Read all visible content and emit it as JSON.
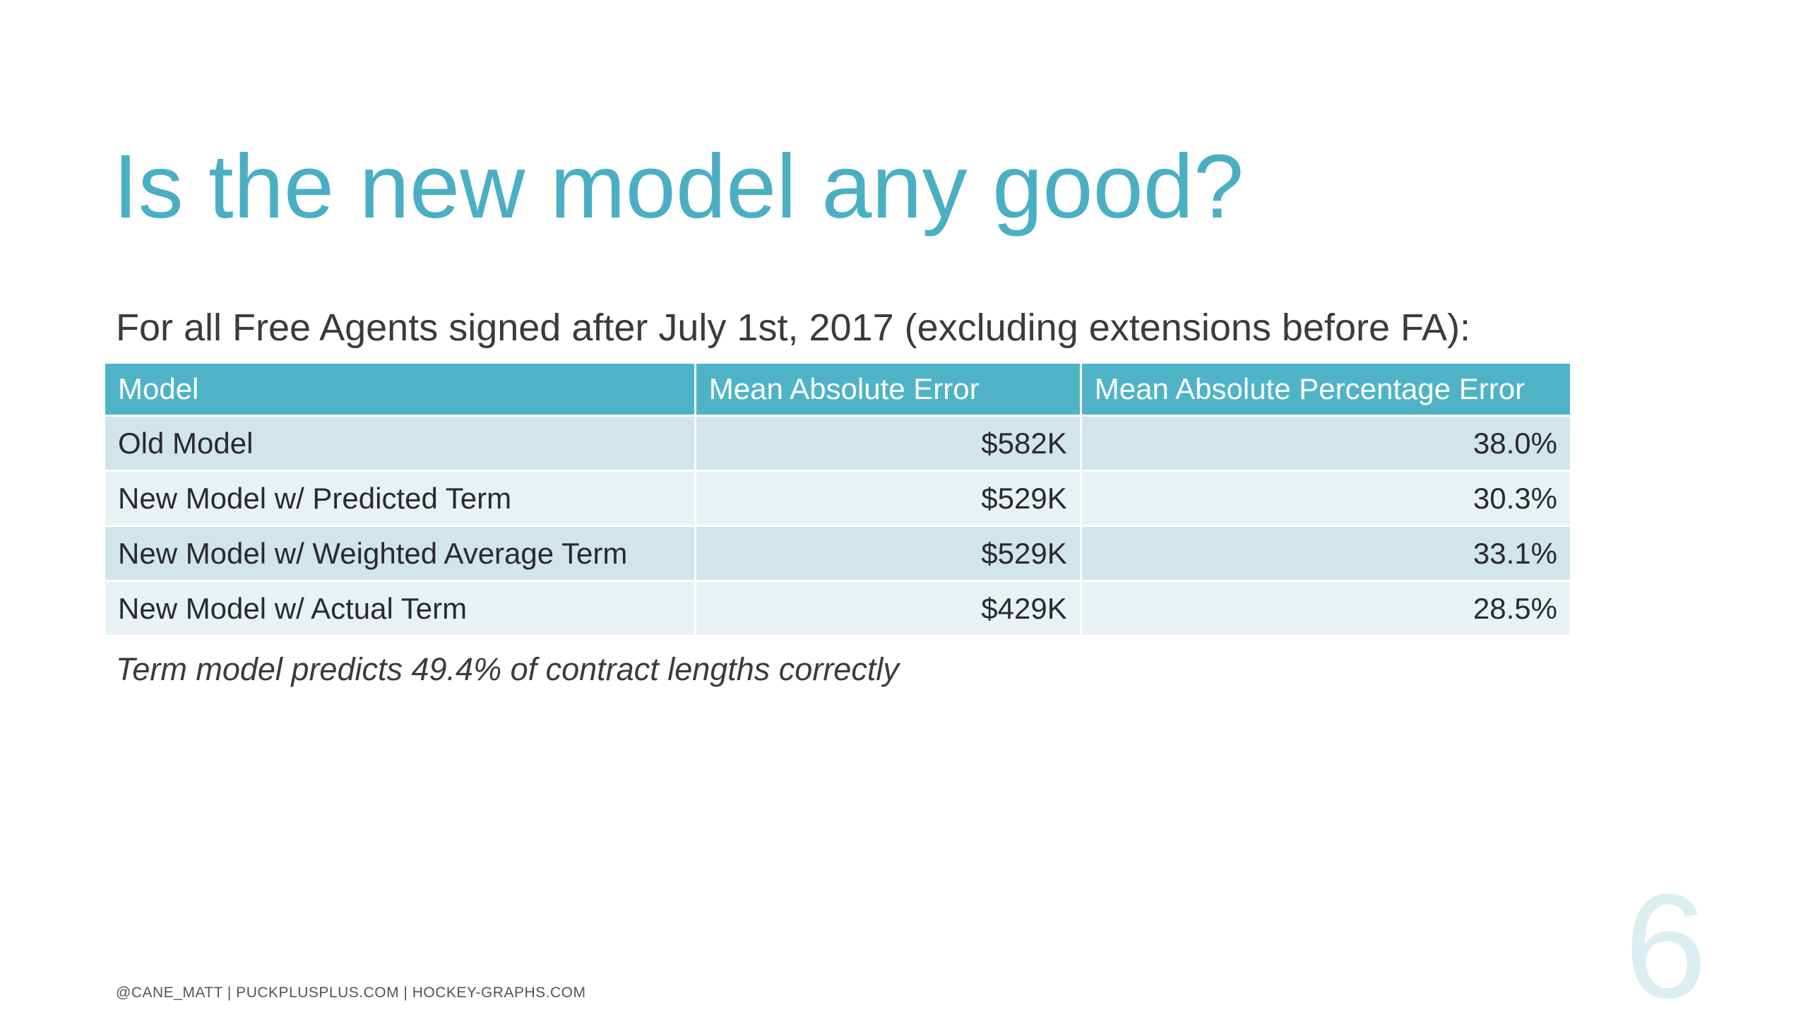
{
  "slide": {
    "title": "Is the new model any good?",
    "subtitle": "For all Free Agents signed after July 1st, 2017 (excluding extensions before FA):",
    "table": {
      "headers": [
        "Model",
        "Mean Absolute Error",
        "Mean Absolute Percentage Error"
      ],
      "rows": [
        [
          "Old Model",
          "$582K",
          "38.0%"
        ],
        [
          "New Model w/ Predicted Term",
          "$529K",
          "30.3%"
        ],
        [
          "New Model w/ Weighted Average Term",
          "$529K",
          "33.1%"
        ],
        [
          "New Model w/ Actual Term",
          "$429K",
          "28.5%"
        ]
      ]
    },
    "note": "Term model predicts 49.4% of contract lengths correctly",
    "footer": "@CANE_MATT | PUCKPLUSPLUS.COM | HOCKEY-GRAPHS.COM",
    "page_number": "6"
  },
  "colors": {
    "accent": "#4bafc4",
    "header_bg": "#4fb3c8",
    "row_dark": "#d1e5eb",
    "row_light": "#e8f2f5",
    "page_number": "#dbeef2"
  }
}
